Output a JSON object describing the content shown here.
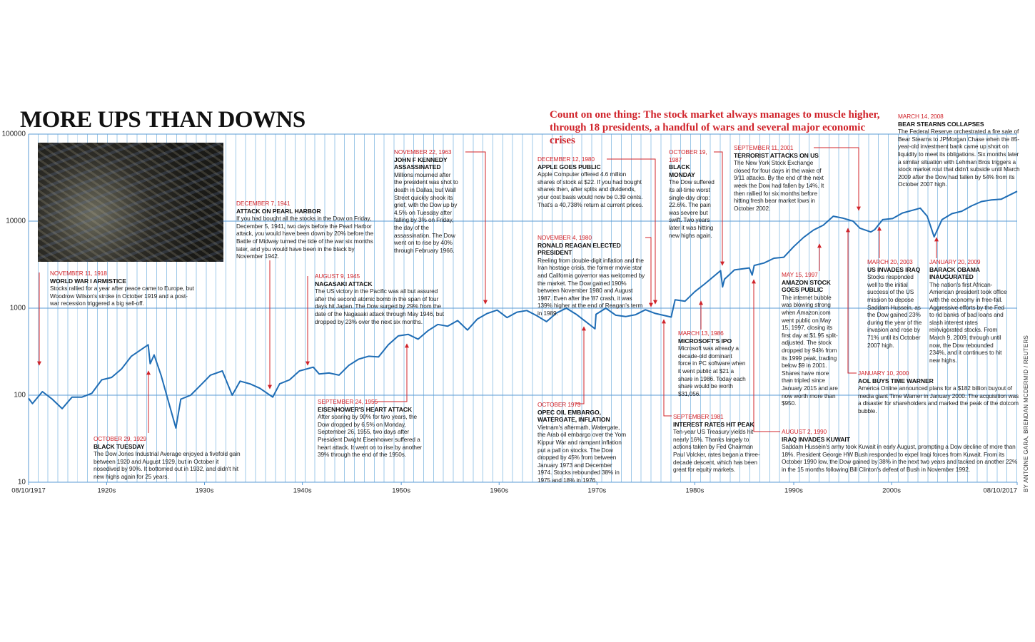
{
  "chart_data": {
    "type": "line",
    "title": "MORE UPS THAN DOWNS",
    "subtitle": "Count on one thing: The stock market always manages to muscle higher, through 18 presidents, a handful of wars and several major economic crises",
    "credit": "BY ANTOINE GARA, BRENDAN MCDERMID / REUTERS",
    "log_scale": true,
    "grid": true,
    "color": "#1f6db5",
    "xlim": [
      1917.6,
      2017.6
    ],
    "ylim": [
      10,
      100000
    ],
    "yticks": [
      10,
      100,
      1000,
      10000,
      100000
    ],
    "xticks": [
      {
        "value": 1917.6,
        "label": "08/10/1917"
      },
      {
        "value": 1925.5,
        "label": "1920s"
      },
      {
        "value": 1935.4,
        "label": "1930s"
      },
      {
        "value": 1945.3,
        "label": "1940s"
      },
      {
        "value": 1955.3,
        "label": "1950s"
      },
      {
        "value": 1965.2,
        "label": "1960s"
      },
      {
        "value": 1975.1,
        "label": "1970s"
      },
      {
        "value": 1985,
        "label": "1980s"
      },
      {
        "value": 1995,
        "label": "1990s"
      },
      {
        "value": 2004.9,
        "label": "2000s"
      },
      {
        "value": 2017.6,
        "label": "08/10/2017"
      }
    ],
    "x": [
      1917.6,
      1918,
      1919,
      1920,
      1921,
      1922,
      1923,
      1924,
      1925,
      1926,
      1927,
      1928,
      1929.7,
      1929.9,
      1930.3,
      1931,
      1932.5,
      1933,
      1934,
      1935,
      1936,
      1937.2,
      1938.2,
      1939,
      1940,
      1941,
      1942.3,
      1943,
      1944,
      1945,
      1946.4,
      1947,
      1948,
      1949,
      1950,
      1951,
      1952,
      1953,
      1954,
      1955,
      1956,
      1957,
      1958,
      1959,
      1960,
      1961,
      1962,
      1963,
      1964,
      1965,
      1966,
      1967,
      1968,
      1969,
      1970,
      1971,
      1972,
      1973,
      1974.9,
      1975,
      1976,
      1977,
      1978,
      1979,
      1980,
      1981,
      1982.6,
      1983,
      1984,
      1985,
      1986,
      1987.6,
      1987.8,
      1988,
      1989,
      1990.5,
      1990.8,
      1991,
      1992,
      1993,
      1994,
      1995,
      1996,
      1997,
      1998,
      1999,
      2000,
      2001,
      2001.7,
      2002.8,
      2003.2,
      2004,
      2005,
      2006,
      2007.8,
      2008.5,
      2009.2,
      2010,
      2011,
      2012,
      2013,
      2014,
      2015,
      2016,
      2017.6
    ],
    "values": [
      92,
      80,
      110,
      90,
      70,
      95,
      95,
      105,
      150,
      160,
      200,
      280,
      380,
      230,
      290,
      170,
      42,
      90,
      100,
      130,
      170,
      190,
      100,
      145,
      135,
      120,
      95,
      135,
      150,
      190,
      210,
      175,
      180,
      170,
      220,
      260,
      280,
      275,
      380,
      480,
      500,
      440,
      550,
      650,
      620,
      720,
      560,
      750,
      870,
      950,
      780,
      900,
      940,
      820,
      700,
      880,
      1000,
      850,
      580,
      850,
      1000,
      830,
      800,
      840,
      960,
      870,
      790,
      1250,
      1200,
      1550,
      1900,
      2700,
      1750,
      2150,
      2750,
      2900,
      2400,
      3100,
      3300,
      3750,
      3850,
      5100,
      6500,
      7900,
      9000,
      11400,
      10800,
      10000,
      8300,
      7500,
      8000,
      10400,
      10700,
      12400,
      14100,
      11400,
      6600,
      10400,
      12200,
      13000,
      15000,
      16800,
      17500,
      17900,
      22000
    ],
    "annotations": [
      {
        "date": "NOVEMBER 11, 1918",
        "title": "WORLD WAR I ARMISTICE",
        "text": "Stocks rallied for a year after peace came to Europe, but Woodrow Wilson's stroke in October 1919 and a post-war recession triggered a big sell-off."
      },
      {
        "date": "OCTOBER 29, 1929",
        "title": "BLACK TUESDAY",
        "text": "The Dow Jones Industrial Average enjoyed a fivefold gain between 1920 and August 1929, but in October it nosedived by 90%. It bottomed out in 1932, and didn't hit new highs again for 25 years."
      },
      {
        "date": "DECEMBER 7, 1941",
        "title": "ATTACK ON PEARL HARBOR",
        "text": "If you had bought all the stocks in the Dow on Friday, December 5, 1941, two days before the Pearl Harbor attack, you would have been down by 20% before the Battle of Midway turned the tide of the war six months later, and you would have been in the black by November 1942."
      },
      {
        "date": "AUGUST 9, 1945",
        "title": "NAGASAKI ATTACK",
        "text": "The US victory in the Pacific was all but assured after the second atomic bomb in the span of four days hit Japan. The Dow surged by 29% from the date of the Nagasaki attack through May 1946, but dropped by 23% over the next six months."
      },
      {
        "date": "SEPTEMBER 24, 1955",
        "title": "EISENHOWER'S HEART ATTACK",
        "text": "After soaring by 90% for two years, the Dow dropped by 6.5% on Monday, September 26, 1955, two days after President Dwight Eisenhower suffered a heart attack. It went on to rise by another 39% through the end of the 1950s."
      },
      {
        "date": "NOVEMBER 22, 1963",
        "title": "JOHN F KENNEDY ASSASSINATED",
        "text": "Millions mourned after the president was shot to death in Dallas, but Wall Street quickly shook its grief, with the Dow up by 4.5% on Tuesday after falling by 3% on Friday, the day of the assassination. The Dow went on to rise by 40% through February 1966."
      },
      {
        "date": "DECEMBER 12, 1980",
        "title": "APPLE GOES PUBLIC",
        "text": "Apple Computer offered 4.6 million shares of stock at $22. If you had bought shares then, after splits and dividends, your cost basis would now be 0.39 cents. That's a 40,738% return at current prices."
      },
      {
        "date": "NOVEMBER 4, 1980",
        "title": "RONALD REAGAN ELECTED PRESIDENT",
        "text": "Reeling from double-digit inflation and the Iran hostage crisis, the former movie star and California governor was welcomed by the market. The Dow gained 190% between November 1980 and August 1987. Even after the '87 crash, it was 139% higher at the end of Reagan's term in 1989."
      },
      {
        "date": "OCTOBER 1973",
        "title": "OPEC OIL EMBARGO, WATERGATE, INFLATION",
        "text": "Vietnam's aftermath, Watergate, the Arab oil embargo over the Yom Kippur War and rampant inflation put a pall on stocks. The Dow dropped by 45% from between January 1973 and December 1974. Stocks rebounded 38% in 1975 and 18% in 1976."
      },
      {
        "date": "MARCH 13, 1986",
        "title": "MICROSOFT'S IPO",
        "text": "Microsoft was already a decade-old dominant force in PC software when it went public at $21 a share in 1986. Today each share would be worth $31,056."
      },
      {
        "date": "SEPTEMBER 1981",
        "title": "INTEREST RATES HIT PEAK",
        "text": "Ten-year US Treasury yields hit nearly 16%. Thanks largely to actions taken by Fed Chairman Paul Volcker, rates began a three-decade descent, which has been great for equity markets."
      },
      {
        "date": "OCTOBER 19, 1987",
        "title": "BLACK MONDAY",
        "text": "The Dow suffered its all-time worst single-day drop: 22.6%. The pain was severe but swift. Two years later it was hitting new highs again."
      },
      {
        "date": "SEPTEMBER 11, 2001",
        "title": "TERRORIST ATTACKS ON US",
        "text": "The New York Stock Exchange closed for four days in the wake of 9/11 attacks. By the end of the next week the Dow had fallen by 14%. It then rallied for six months before hitting fresh bear market lows in October 2002."
      },
      {
        "date": "MAY 15, 1997",
        "title": "AMAZON STOCK GOES PUBLIC",
        "text": "The internet bubble was blowing strong when Amazon.com went public on May 15, 1997, closing its first day at $1.95 split-adjusted. The stock dropped by 94% from its 1999 peak, trading below $9 in 2001. Shares have more than tripled since January 2015 and are now worth more than $950."
      },
      {
        "date": "AUGUST 2, 1990",
        "title": "IRAQ INVADES KUWAIT",
        "text": "Saddam Hussein's army took Kuwait in early August, prompting a Dow decline of more than 18%. President George HW Bush responded to expel Iraqi forces from Kuwait. From its October 1990 low, the Dow gained by 38% in the next two years and tacked on another 22% in the 15 months following Bill Clinton's defeat of Bush in November 1992."
      },
      {
        "date": "JANUARY 10, 2000",
        "title": "AOL BUYS TIME WARNER",
        "text": "America Online announced plans for a $182 billion buyout of media giant Time Warner in January 2000. The acquisition was a disaster for shareholders and marked the peak of the dotcom bubble."
      },
      {
        "date": "MARCH 20, 2003",
        "title": "US INVADES IRAQ",
        "text": "Stocks responded well to the initial success of the US mission to depose Saddam Hussein, as the Dow gained 23% during the year of the invasion and rose by 71% until its October 2007 high."
      },
      {
        "date": "JANUARY 20, 2009",
        "title": "BARACK OBAMA INAUGURATED",
        "text": "The nation's first African-American president took office with the economy in free-fall. Aggressive efforts by the Fed to rid banks of bad loans and slash interest rates reinvigorated stocks. From March 9, 2009, through until now, the Dow rebounded 234%, and it continues to hit new highs."
      },
      {
        "date": "MARCH 14, 2008",
        "title": "BEAR STEARNS COLLAPSES",
        "text": "The Federal Reserve orchestrated a fire sale of Bear Stearns to JPMorgan Chase when the 85-year-old investment bank came up short on liquidity to meet its obligations. Six months later a similar situation with Lehman Bros triggers a stock market rout that didn't subside until March 2009 after the Dow had fallen by 54% from its October 2007 high."
      }
    ]
  }
}
